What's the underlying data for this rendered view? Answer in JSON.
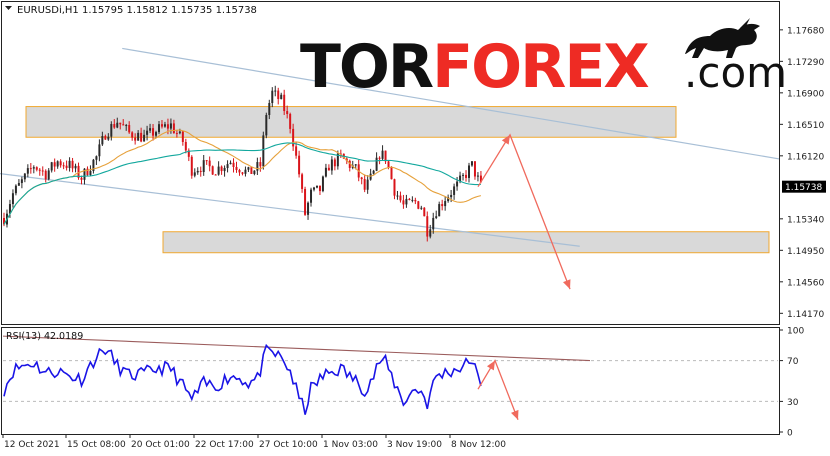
{
  "header": {
    "symbol_line": "EURUSDi,H1  1.15795  1.15812  1.15735  1.15738"
  },
  "logo": {
    "part_dark": "TOR",
    "part_red": "FOREX",
    "part_suffix": ".com",
    "colors": {
      "dark": "#111111",
      "red": "#ee2b24"
    }
  },
  "colors": {
    "bull_candle": "#2a2a2a",
    "bear_candle": "#d9141a",
    "ma_fast": "#e6a13b",
    "ma_slow": "#13a89e",
    "channel": "#a8bfd6",
    "zone_fill": "#d9d9d9",
    "zone_border": "#f0a830",
    "forecast_arrow": "#f06a5d",
    "rsi_line": "#1a14e6",
    "rsi_trend": "#9b5c5c",
    "price_tag_bg": "#000000"
  },
  "price_axis": {
    "ticks": [
      "1.17680",
      "1.17290",
      "1.16900",
      "1.16510",
      "1.16120",
      "1.15340",
      "1.14950",
      "1.14560",
      "1.14170"
    ],
    "current_price_tag": "1.15738"
  },
  "rsi": {
    "label": "RSI(13) 42.0189",
    "ticks": [
      "100",
      "70",
      "30",
      "0"
    ]
  },
  "time_axis": {
    "labels": [
      "12 Oct 2021",
      "15 Oct 08:00",
      "20 Oct 01:00",
      "22 Oct 17:00",
      "27 Oct 10:00",
      "1 Nov 03:00",
      "3 Nov 19:00",
      "8 Nov 12:00"
    ]
  },
  "chart_data": [
    {
      "type": "candlestick",
      "title": "EURUSDi,H1",
      "ohlc_last": {
        "open": 1.15795,
        "high": 1.15812,
        "low": 1.15735,
        "close": 1.15738
      },
      "x_labels": [
        "12 Oct 2021",
        "15 Oct 08:00",
        "20 Oct 01:00",
        "22 Oct 17:00",
        "27 Oct 10:00",
        "1 Nov 03:00",
        "3 Nov 19:00",
        "8 Nov 12:00"
      ],
      "ylim": [
        1.1405,
        1.18
      ],
      "price_path": [
        [
          0,
          1.1535
        ],
        [
          3,
          1.1565
        ],
        [
          6,
          1.158
        ],
        [
          10,
          1.16
        ],
        [
          14,
          1.159
        ],
        [
          18,
          1.1605
        ],
        [
          22,
          1.16
        ],
        [
          26,
          1.1585
        ],
        [
          31,
          1.161
        ],
        [
          34,
          1.164
        ],
        [
          38,
          1.1655
        ],
        [
          42,
          1.164
        ],
        [
          47,
          1.1635
        ],
        [
          52,
          1.1645
        ],
        [
          56,
          1.165
        ],
        [
          60,
          1.163
        ],
        [
          63,
          1.1595
        ],
        [
          67,
          1.16
        ],
        [
          71,
          1.1595
        ],
        [
          76,
          1.1605
        ],
        [
          82,
          1.159
        ],
        [
          86,
          1.16
        ],
        [
          88,
          1.1665
        ],
        [
          90,
          1.169
        ],
        [
          93,
          1.168
        ],
        [
          96,
          1.165
        ],
        [
          99,
          1.159
        ],
        [
          101,
          1.154
        ],
        [
          103,
          1.1565
        ],
        [
          106,
          1.157
        ],
        [
          109,
          1.16
        ],
        [
          113,
          1.161
        ],
        [
          118,
          1.1595
        ],
        [
          121,
          1.157
        ],
        [
          124,
          1.159
        ],
        [
          126,
          1.1615
        ],
        [
          128,
          1.161
        ],
        [
          131,
          1.157
        ],
        [
          134,
          1.155
        ],
        [
          138,
          1.1555
        ],
        [
          140,
          1.155
        ],
        [
          142,
          1.152
        ],
        [
          145,
          1.1545
        ],
        [
          148,
          1.156
        ],
        [
          152,
          1.1575
        ],
        [
          155,
          1.159
        ],
        [
          157,
          1.16
        ],
        [
          160,
          1.15738
        ]
      ],
      "moving_averages": [
        {
          "name": "",
          "color": "#e6a13b",
          "period": 24
        },
        {
          "name": "",
          "color": "#13a89e",
          "period": 60
        }
      ],
      "resistance_zone": [
        1.1635,
        1.1673
      ],
      "support_zone": [
        1.1492,
        1.1518
      ],
      "channel": {
        "upper": [
          [
            40,
            1.1745
          ],
          [
            260,
            1.1608
          ]
        ],
        "lower": [
          [
            0,
            1.159
          ],
          [
            170,
            1.15
          ]
        ]
      },
      "forecast": [
        [
          160,
          1.15738
        ],
        [
          170,
          1.1638
        ],
        [
          185,
          1.1447
        ]
      ]
    },
    {
      "type": "line",
      "title": "RSI(13) 42.0189",
      "ylim": [
        0,
        100
      ],
      "levels": [
        70,
        30
      ],
      "rsi_path": [
        [
          0,
          42
        ],
        [
          3,
          60
        ],
        [
          6,
          65
        ],
        [
          10,
          68
        ],
        [
          14,
          58
        ],
        [
          18,
          60
        ],
        [
          22,
          55
        ],
        [
          26,
          52
        ],
        [
          30,
          70
        ],
        [
          34,
          82
        ],
        [
          38,
          65
        ],
        [
          42,
          55
        ],
        [
          47,
          57
        ],
        [
          52,
          63
        ],
        [
          56,
          62
        ],
        [
          60,
          45
        ],
        [
          63,
          32
        ],
        [
          67,
          47
        ],
        [
          71,
          45
        ],
        [
          76,
          55
        ],
        [
          80,
          52
        ],
        [
          82,
          48
        ],
        [
          85,
          52
        ],
        [
          88,
          78
        ],
        [
          90,
          78
        ],
        [
          93,
          72
        ],
        [
          96,
          60
        ],
        [
          99,
          32
        ],
        [
          101,
          22
        ],
        [
          103,
          42
        ],
        [
          106,
          52
        ],
        [
          109,
          58
        ],
        [
          113,
          62
        ],
        [
          118,
          50
        ],
        [
          121,
          42
        ],
        [
          124,
          55
        ],
        [
          126,
          70
        ],
        [
          128,
          68
        ],
        [
          131,
          48
        ],
        [
          134,
          30
        ],
        [
          138,
          42
        ],
        [
          140,
          40
        ],
        [
          142,
          28
        ],
        [
          145,
          55
        ],
        [
          148,
          58
        ],
        [
          152,
          62
        ],
        [
          155,
          66
        ],
        [
          157,
          72
        ],
        [
          160,
          42
        ]
      ],
      "trendline": [
        [
          0,
          94
        ],
        [
          195,
          70
        ]
      ],
      "forecast": [
        [
          160,
          42
        ],
        [
          164,
          70
        ],
        [
          172,
          12
        ]
      ]
    }
  ]
}
